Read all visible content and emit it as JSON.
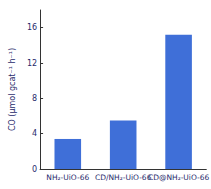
{
  "chart_data": {
    "type": "bar",
    "y_label": "CO (μmol gcat⁻¹ h⁻¹)",
    "categories": [
      "NH₂-UiO-66",
      "CD/NH₂-UiO-66",
      "CD@NH₂-UiO-66"
    ],
    "values": [
      3.4,
      5.5,
      15.2
    ],
    "color": "#3f6fd8",
    "ylim": [
      0,
      18
    ],
    "yticks": [
      0,
      4,
      8,
      12,
      16
    ],
    "grid": false
  }
}
